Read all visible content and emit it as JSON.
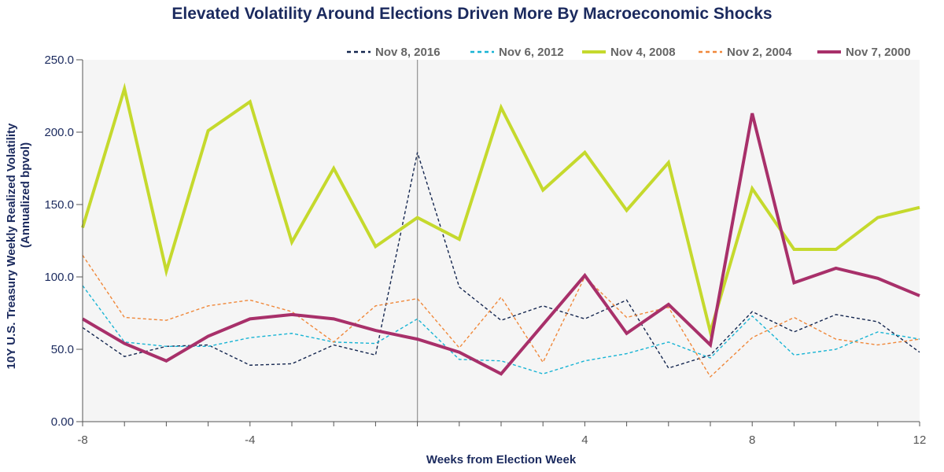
{
  "chart_data": {
    "type": "line",
    "title": "Elevated Volatility Around Elections Driven More By Macroeconomic Shocks",
    "xlabel": "Weeks from Election Week",
    "ylabel_line1": "10Y U.S. Treasury Weekly Realized Volatility",
    "ylabel_line2": "(Annualized bpvol)",
    "x": [
      -8,
      -7,
      -6,
      -5,
      -4,
      -3,
      -2,
      -1,
      0,
      1,
      2,
      3,
      4,
      5,
      6,
      7,
      8,
      9,
      10,
      11,
      12
    ],
    "xlim": [
      -8,
      12
    ],
    "ylim": [
      0,
      250
    ],
    "x_ticks": [
      "-8",
      "-4",
      "4",
      "8",
      "12"
    ],
    "x_tick_values": [
      -8,
      -4,
      4,
      8,
      12
    ],
    "y_ticks": [
      "0.00",
      "50.0",
      "100.0",
      "150.0",
      "200.0",
      "250.0"
    ],
    "y_tick_values": [
      0,
      50,
      100,
      150,
      200,
      250
    ],
    "vline_x": 0,
    "legend_position": "top-right",
    "grid": false,
    "series": [
      {
        "name": "Nov 8, 2016",
        "color": "#14264f",
        "style": "dashed",
        "values": [
          65,
          45,
          52,
          53,
          39,
          40,
          53,
          46,
          186,
          93,
          70,
          80,
          71,
          84,
          37,
          46,
          76,
          62,
          74,
          69,
          48
        ]
      },
      {
        "name": "Nov 6, 2012",
        "color": "#18b4d4",
        "style": "dashed",
        "values": [
          94,
          55,
          52,
          52,
          58,
          61,
          55,
          54,
          71,
          43,
          42,
          33,
          42,
          47,
          55,
          44,
          73,
          46,
          50,
          62,
          57
        ]
      },
      {
        "name": "Nov 4, 2008",
        "color": "#c5d92d",
        "style": "solid",
        "values": [
          134,
          230,
          104,
          201,
          221,
          124,
          175,
          121,
          141,
          126,
          217,
          160,
          186,
          146,
          179,
          62,
          161,
          119,
          119,
          141,
          148
        ]
      },
      {
        "name": "Nov 2, 2004",
        "color": "#f0883a",
        "style": "dashed",
        "values": [
          115,
          72,
          70,
          80,
          84,
          76,
          55,
          80,
          85,
          51,
          86,
          41,
          100,
          72,
          79,
          31,
          58,
          72,
          57,
          53,
          57
        ]
      },
      {
        "name": "Nov 7, 2000",
        "color": "#a8306a",
        "style": "solid",
        "values": [
          71,
          54,
          42,
          59,
          71,
          74,
          71,
          63,
          57,
          48,
          33,
          67,
          101,
          61,
          81,
          53,
          213,
          96,
          106,
          99,
          87
        ]
      }
    ]
  }
}
